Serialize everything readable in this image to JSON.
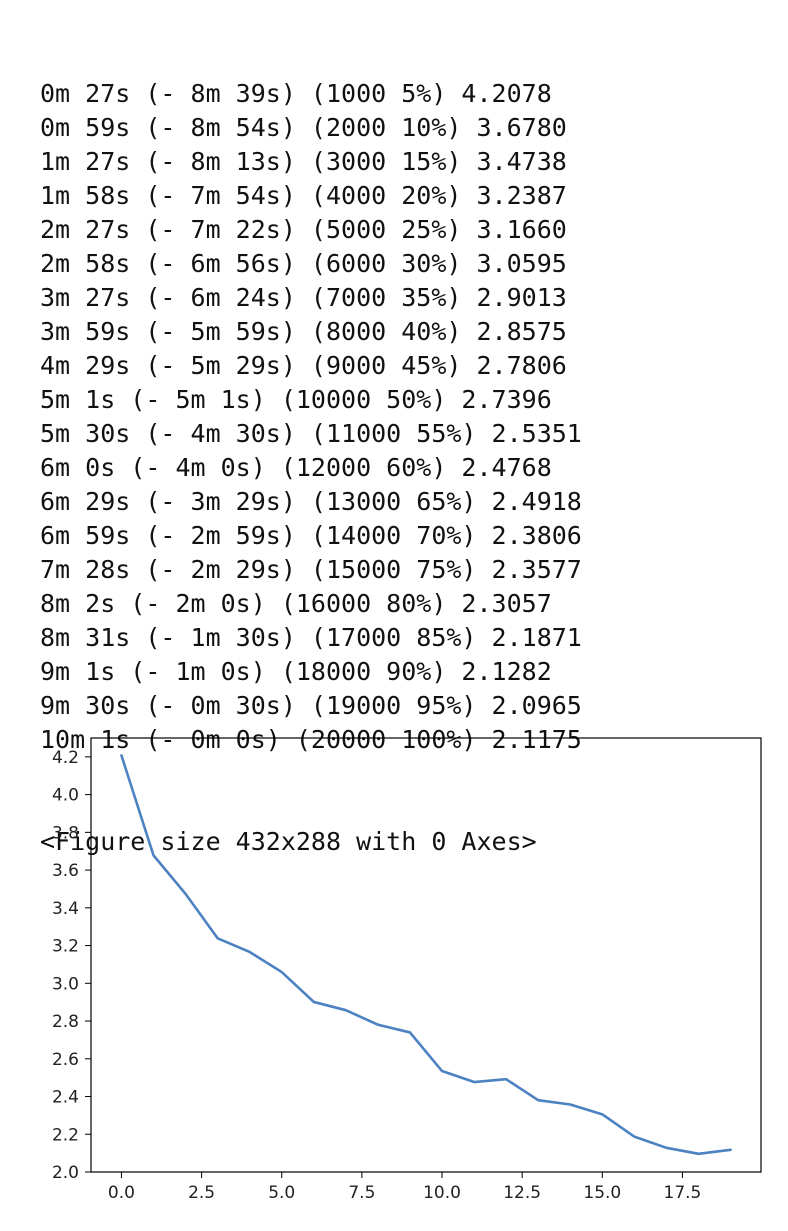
{
  "output": {
    "log_lines": [
      "0m 27s (- 8m 39s) (1000 5%) 4.2078",
      "0m 59s (- 8m 54s) (2000 10%) 3.6780",
      "1m 27s (- 8m 13s) (3000 15%) 3.4738",
      "1m 58s (- 7m 54s) (4000 20%) 3.2387",
      "2m 27s (- 7m 22s) (5000 25%) 3.1660",
      "2m 58s (- 6m 56s) (6000 30%) 3.0595",
      "3m 27s (- 6m 24s) (7000 35%) 2.9013",
      "3m 59s (- 5m 59s) (8000 40%) 2.8575",
      "4m 29s (- 5m 29s) (9000 45%) 2.7806",
      "5m 1s (- 5m 1s) (10000 50%) 2.7396",
      "5m 30s (- 4m 30s) (11000 55%) 2.5351",
      "6m 0s (- 4m 0s) (12000 60%) 2.4768",
      "6m 29s (- 3m 29s) (13000 65%) 2.4918",
      "6m 59s (- 2m 59s) (14000 70%) 2.3806",
      "7m 28s (- 2m 29s) (15000 75%) 2.3577",
      "8m 2s (- 2m 0s) (16000 80%) 2.3057",
      "8m 31s (- 1m 30s) (17000 85%) 2.1871",
      "9m 1s (- 1m 0s) (18000 90%) 2.1282",
      "9m 30s (- 0m 30s) (19000 95%) 2.0965",
      "10m 1s (- 0m 0s) (20000 100%) 2.1175"
    ],
    "figure_repr": "<Figure size 432x288 with 0 Axes>"
  },
  "chart_data": {
    "type": "line",
    "x": [
      0,
      1,
      2,
      3,
      4,
      5,
      6,
      7,
      8,
      9,
      10,
      11,
      12,
      13,
      14,
      15,
      16,
      17,
      18,
      19
    ],
    "series": [
      {
        "values": [
          4.2078,
          3.678,
          3.4738,
          3.2387,
          3.166,
          3.0595,
          2.9013,
          2.8575,
          2.7806,
          2.7396,
          2.5351,
          2.4768,
          2.4918,
          2.3806,
          2.3577,
          2.3057,
          2.1871,
          2.1282,
          2.0965,
          2.1175
        ],
        "color": "#4c82c1"
      }
    ],
    "xlim": [
      -0.95,
      19.95
    ],
    "ylim": [
      2.0,
      4.3
    ],
    "x_ticks": [
      0.0,
      2.5,
      5.0,
      7.5,
      10.0,
      12.5,
      15.0,
      17.5
    ],
    "x_tick_labels": [
      "0.0",
      "2.5",
      "5.0",
      "7.5",
      "10.0",
      "12.5",
      "15.0",
      "17.5"
    ],
    "y_ticks": [
      2.0,
      2.2,
      2.4,
      2.6,
      2.8,
      3.0,
      3.2,
      3.4,
      3.6,
      3.8,
      4.0,
      4.2
    ],
    "y_tick_labels": [
      "2.0",
      "2.2",
      "2.4",
      "2.6",
      "2.8",
      "3.0",
      "3.2",
      "3.4",
      "3.6",
      "3.8",
      "4.0",
      "4.2"
    ],
    "title": "",
    "xlabel": "",
    "ylabel": "",
    "grid": false,
    "legend": false
  }
}
